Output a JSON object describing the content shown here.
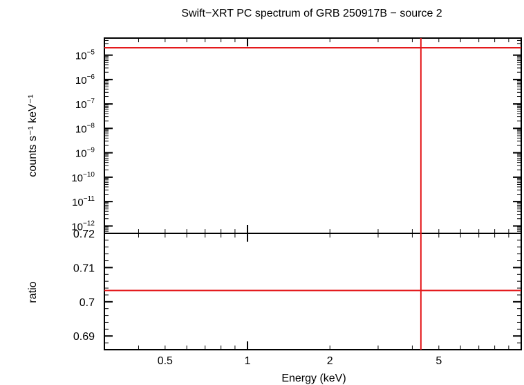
{
  "chart_data": [
    {
      "type": "line",
      "panel": "spectrum",
      "title": "Swift−XRT PC spectrum of GRB 250917B − source 2",
      "ylabel": "counts s⁻¹ keV⁻¹",
      "xlabel": "",
      "x_scale": "log",
      "y_scale": "log",
      "xlim": [
        0.3,
        10
      ],
      "ylim": [
        5e-13,
        5e-05
      ],
      "y_ticks": [
        {
          "value": 1e-05,
          "base": "10",
          "exp": "−5"
        },
        {
          "value": 1e-06,
          "base": "10",
          "exp": "−6"
        },
        {
          "value": 1e-07,
          "base": "10",
          "exp": "−7"
        },
        {
          "value": 1e-08,
          "base": "10",
          "exp": "−8"
        },
        {
          "value": 1e-09,
          "base": "10",
          "exp": "−9"
        },
        {
          "value": 1e-10,
          "base": "10",
          "exp": "−10"
        },
        {
          "value": 1e-11,
          "base": "10",
          "exp": "−11"
        },
        {
          "value": 1e-12,
          "base": "10",
          "exp": "−12"
        }
      ],
      "series": [
        {
          "color": "#e41a1c",
          "x": [
            0.3,
            10
          ],
          "y": [
            2e-05,
            2e-05
          ]
        }
      ],
      "vlines": [
        {
          "x": 4.3,
          "color": "#e41a1c"
        }
      ],
      "grid": false
    },
    {
      "type": "line",
      "panel": "ratio",
      "xlabel": "Energy (keV)",
      "ylabel": "ratio",
      "x_scale": "log",
      "xlim": [
        0.3,
        10
      ],
      "ylim": [
        0.686,
        0.72
      ],
      "x_ticks": [
        {
          "value": 0.5,
          "label": "0.5"
        },
        {
          "value": 1,
          "label": "1"
        },
        {
          "value": 2,
          "label": "2"
        },
        {
          "value": 5,
          "label": "5"
        }
      ],
      "y_ticks": [
        {
          "value": 0.72,
          "label": "0.72"
        },
        {
          "value": 0.71,
          "label": "0.71"
        },
        {
          "value": 0.7,
          "label": "0.7"
        },
        {
          "value": 0.69,
          "label": "0.69"
        }
      ],
      "series": [
        {
          "color": "#e41a1c",
          "x": [
            0.3,
            10
          ],
          "y": [
            0.7033,
            0.7033
          ]
        }
      ],
      "vlines": [
        {
          "x": 4.3,
          "color": "#e41a1c"
        }
      ],
      "grid": false
    }
  ]
}
